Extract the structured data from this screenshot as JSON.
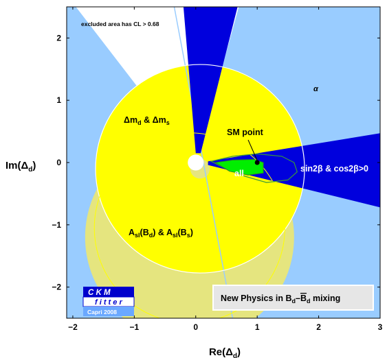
{
  "chart_data": {
    "type": "contour",
    "title": "",
    "xlabel": "Re(Δ",
    "xlabel_sub": "d",
    "ylabel": "Im(Δ",
    "ylabel_sub": "d",
    "label_close": ")",
    "xlim": [
      -2.1,
      3.0
    ],
    "ylim": [
      -2.5,
      2.5
    ],
    "xticks": [
      -2,
      -1,
      0,
      1,
      2,
      3
    ],
    "yticks": [
      -2,
      -1,
      0,
      1,
      2
    ],
    "xtick_labels": [
      "−2",
      "−1",
      "0",
      "1",
      "2",
      "3"
    ],
    "ytick_labels": [
      "−2",
      "−1",
      "0",
      "1",
      "2"
    ],
    "excluded_note": "excluded area has CL > 0.68",
    "regions": {
      "alpha": {
        "label": "α",
        "color": "#99ccff"
      },
      "sin2beta": {
        "label_main": "sin2β & cos2β>0",
        "color": "#0000dd"
      },
      "dm": {
        "label_a": "Δm",
        "label_a_sub": "d",
        "label_b": "Δm",
        "label_b_sub": "s",
        "amp": " & ",
        "color": "#ffff00",
        "center": [
          0.07,
          -0.1
        ],
        "radius": 1.7
      },
      "asl": {
        "label_a": "A",
        "label_a_sub": "sl",
        "paren_a": "(B",
        "paren_a_sub": "d",
        "label_b": "A",
        "label_b_sub": "sl",
        "paren_b": "(B",
        "paren_b_sub": "s",
        "close": ")",
        "amp": " & ",
        "color": "#e5e57f",
        "center": [
          -0.1,
          -1.2
        ],
        "radius": 1.7
      },
      "all": {
        "label": "all",
        "color": "#00ee00"
      }
    },
    "sm_point": {
      "label": "SM point",
      "x": 1.0,
      "y": 0.0
    },
    "logo": {
      "line1": "C K M",
      "line2": "f i t t e r",
      "line3": "Capri 2008"
    },
    "banner": {
      "prefix": "New Physics in B",
      "sub1": "d",
      "dash": "–",
      "bar": "B",
      "sub2": "d",
      "suffix": " mixing"
    }
  }
}
